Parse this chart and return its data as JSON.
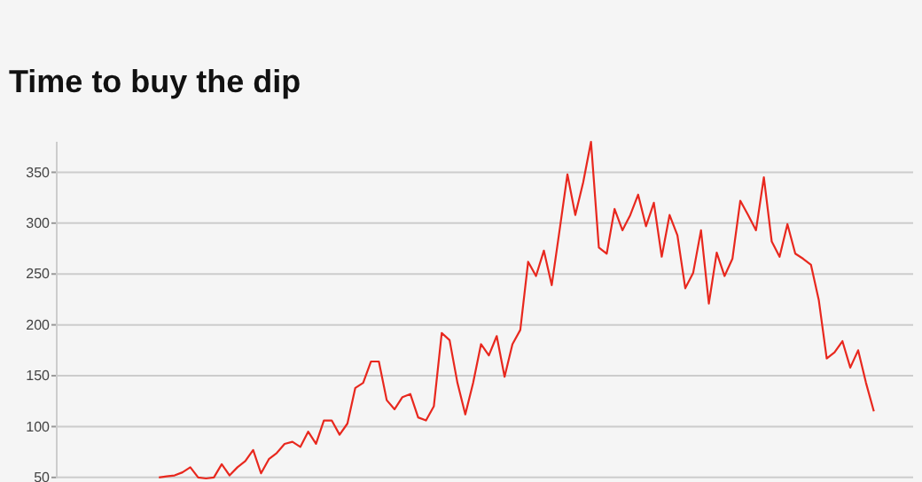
{
  "chart_data": {
    "type": "line",
    "title": "Time to buy the dip",
    "categories": [
      null,
      null,
      null,
      null,
      null,
      null,
      null,
      null,
      null,
      null,
      null,
      null,
      null,
      null,
      null,
      null,
      null,
      null,
      null,
      null,
      null,
      null,
      null,
      null,
      null,
      null,
      null,
      null,
      null,
      null,
      null,
      null,
      null,
      null,
      null,
      null,
      null,
      null,
      null,
      null,
      null,
      null,
      null,
      null,
      null,
      null,
      null,
      null,
      null,
      null,
      null,
      null,
      null,
      null,
      null,
      null,
      null,
      null,
      null,
      null,
      null,
      null,
      null,
      null,
      null,
      null,
      null,
      null,
      null,
      null,
      null,
      null,
      null,
      null,
      null,
      null,
      null,
      null,
      null,
      null,
      null,
      null,
      null,
      null,
      null,
      null,
      null,
      null,
      null,
      null,
      null,
      null,
      null,
      null,
      null,
      null,
      null,
      null,
      null,
      null,
      null,
      null,
      null,
      null,
      null,
      null,
      null,
      null,
      null,
      null
    ],
    "series": [
      {
        "color": "#e8281e",
        "values": [
          null,
          null,
          null,
          null,
          null,
          null,
          null,
          null,
          null,
          null,
          null,
          null,
          null,
          50,
          51,
          52,
          55,
          60,
          50,
          49,
          50,
          63,
          52,
          60,
          66,
          77,
          54,
          68,
          74,
          83,
          85,
          80,
          95,
          83,
          106,
          106,
          92,
          103,
          138,
          143,
          164,
          164,
          126,
          117,
          129,
          132,
          109,
          106,
          120,
          192,
          185,
          143,
          112,
          143,
          181,
          170,
          189,
          149,
          181,
          195,
          262,
          248,
          273,
          239,
          293,
          348,
          308,
          340,
          380,
          276,
          270,
          314,
          293,
          308,
          328,
          297,
          320,
          267,
          308,
          288,
          236,
          251,
          293,
          221,
          271,
          248,
          265,
          322,
          308,
          293,
          345,
          282,
          267,
          299,
          270,
          265,
          259,
          224,
          167,
          173,
          184,
          158,
          175,
          143,
          115,
          null,
          null,
          null,
          null,
          null
        ]
      }
    ],
    "ylim": [
      49,
      380
    ],
    "yticks": [
      50,
      100,
      150,
      200,
      250,
      300,
      350
    ],
    "grid": "y",
    "tick_labels": "y",
    "marker": "none",
    "line_style": "solid"
  }
}
